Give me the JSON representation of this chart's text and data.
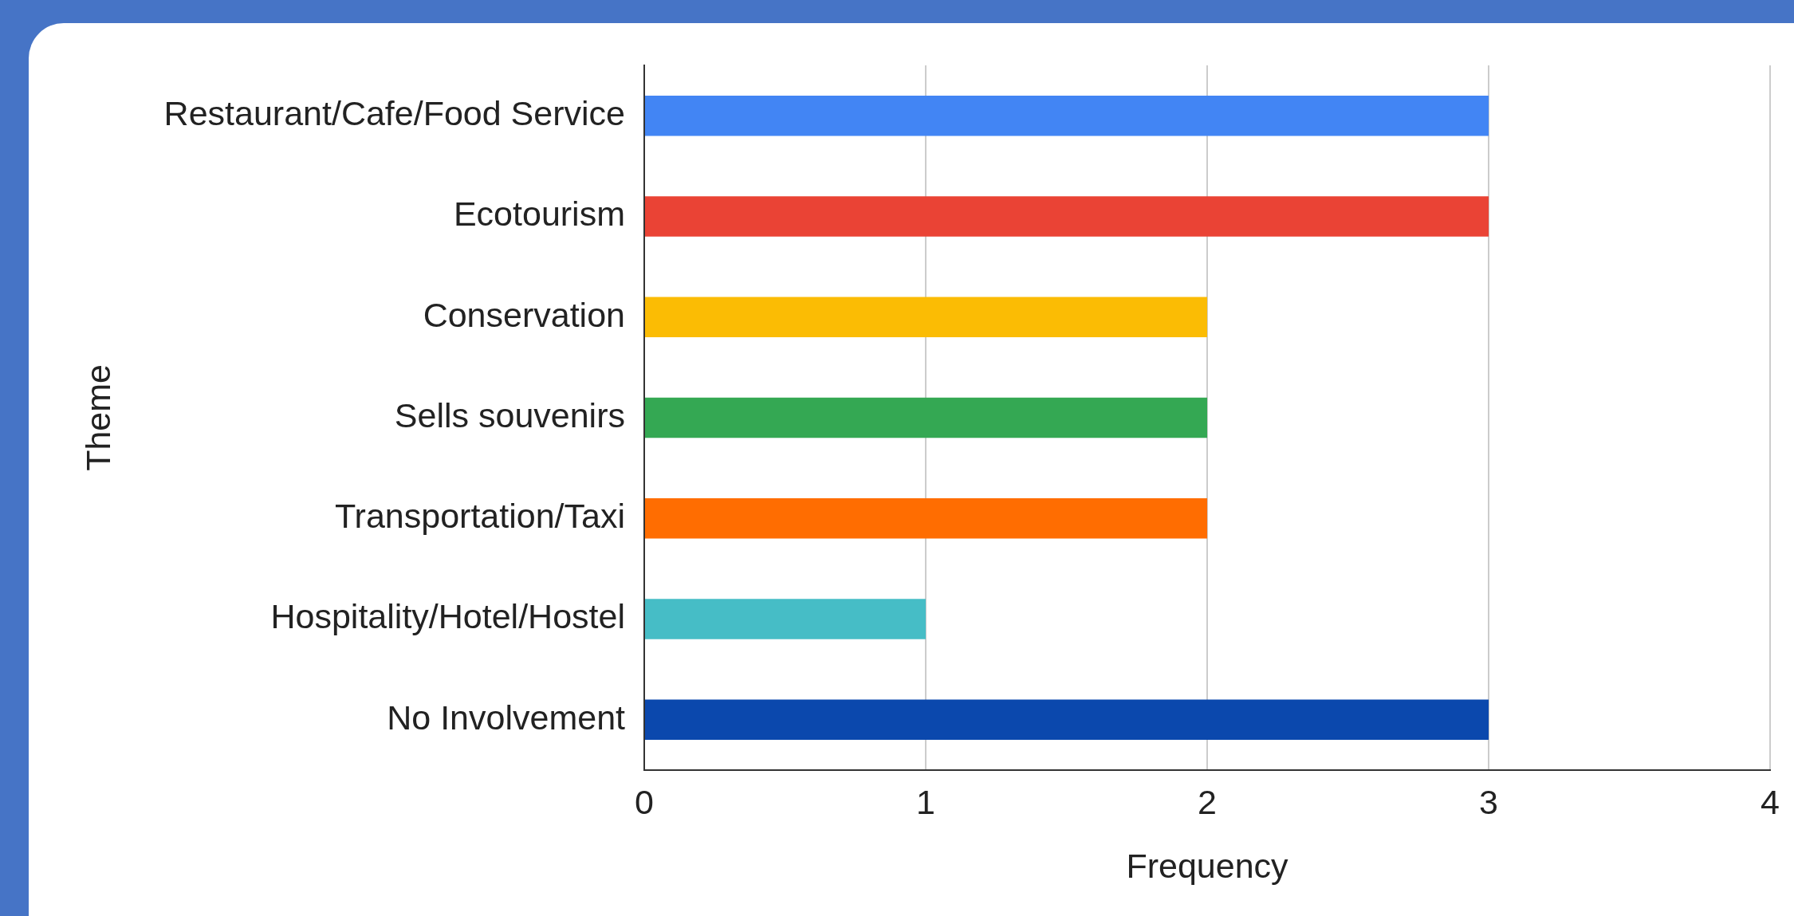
{
  "chart_data": {
    "type": "bar",
    "orientation": "horizontal",
    "xlabel": "Frequency",
    "ylabel": "Theme",
    "categories": [
      "Restaurant/Cafe/Food Service",
      "Ecotourism",
      "Conservation",
      "Sells souvenirs",
      "Transportation/Taxi",
      "Hospitality/Hotel/Hostel",
      "No Involvement"
    ],
    "values": [
      3,
      3,
      2,
      2,
      2,
      1,
      3
    ],
    "colors": [
      "#4285f4",
      "#ea4335",
      "#fbbc04",
      "#34a853",
      "#ff6d01",
      "#46bdc6",
      "#0b48ad"
    ],
    "xlim": [
      0,
      4
    ],
    "xticks": [
      0,
      1,
      2,
      3,
      4
    ],
    "grid": "x",
    "legend": false
  }
}
